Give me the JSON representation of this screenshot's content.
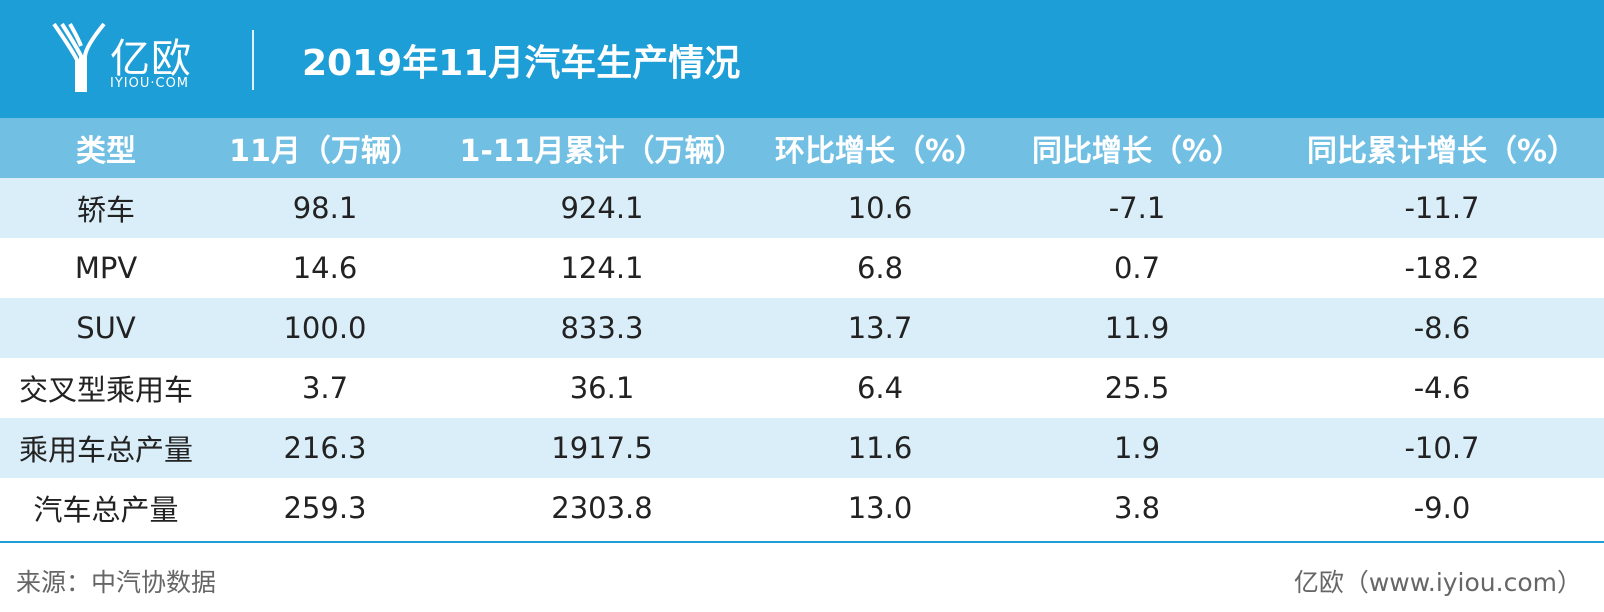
{
  "header": {
    "brand": "亿欧",
    "brand_sub": "IYIOU·COM",
    "title": "2019年11月汽车生产情况"
  },
  "chart_data": {
    "type": "table",
    "columns": [
      "类型",
      "11月（万辆）",
      "1-11月累计（万辆）",
      "环比增长（%）",
      "同比增长（%）",
      "同比累计增长（%）"
    ],
    "rows": [
      [
        "轿车",
        "98.1",
        "924.1",
        "10.6",
        "-7.1",
        "-11.7"
      ],
      [
        "MPV",
        "14.6",
        "124.1",
        "6.8",
        "0.7",
        "-18.2"
      ],
      [
        "SUV",
        "100.0",
        "833.3",
        "13.7",
        "11.9",
        "-8.6"
      ],
      [
        "交叉型乘用车",
        "3.7",
        "36.1",
        "6.4",
        "25.5",
        "-4.6"
      ],
      [
        "乘用车总产量",
        "216.3",
        "1917.5",
        "11.6",
        "1.9",
        "-10.7"
      ],
      [
        "汽车总产量",
        "259.3",
        "2303.8",
        "13.0",
        "3.8",
        "-9.0"
      ]
    ]
  },
  "footer": {
    "source": "来源：中汽协数据",
    "credit": "亿欧（www.iyiou.com）"
  },
  "colors": {
    "header_bg": "#1e9ed6",
    "table_header_bg": "#71bfe3",
    "row_stripe": "#d9eef8"
  }
}
